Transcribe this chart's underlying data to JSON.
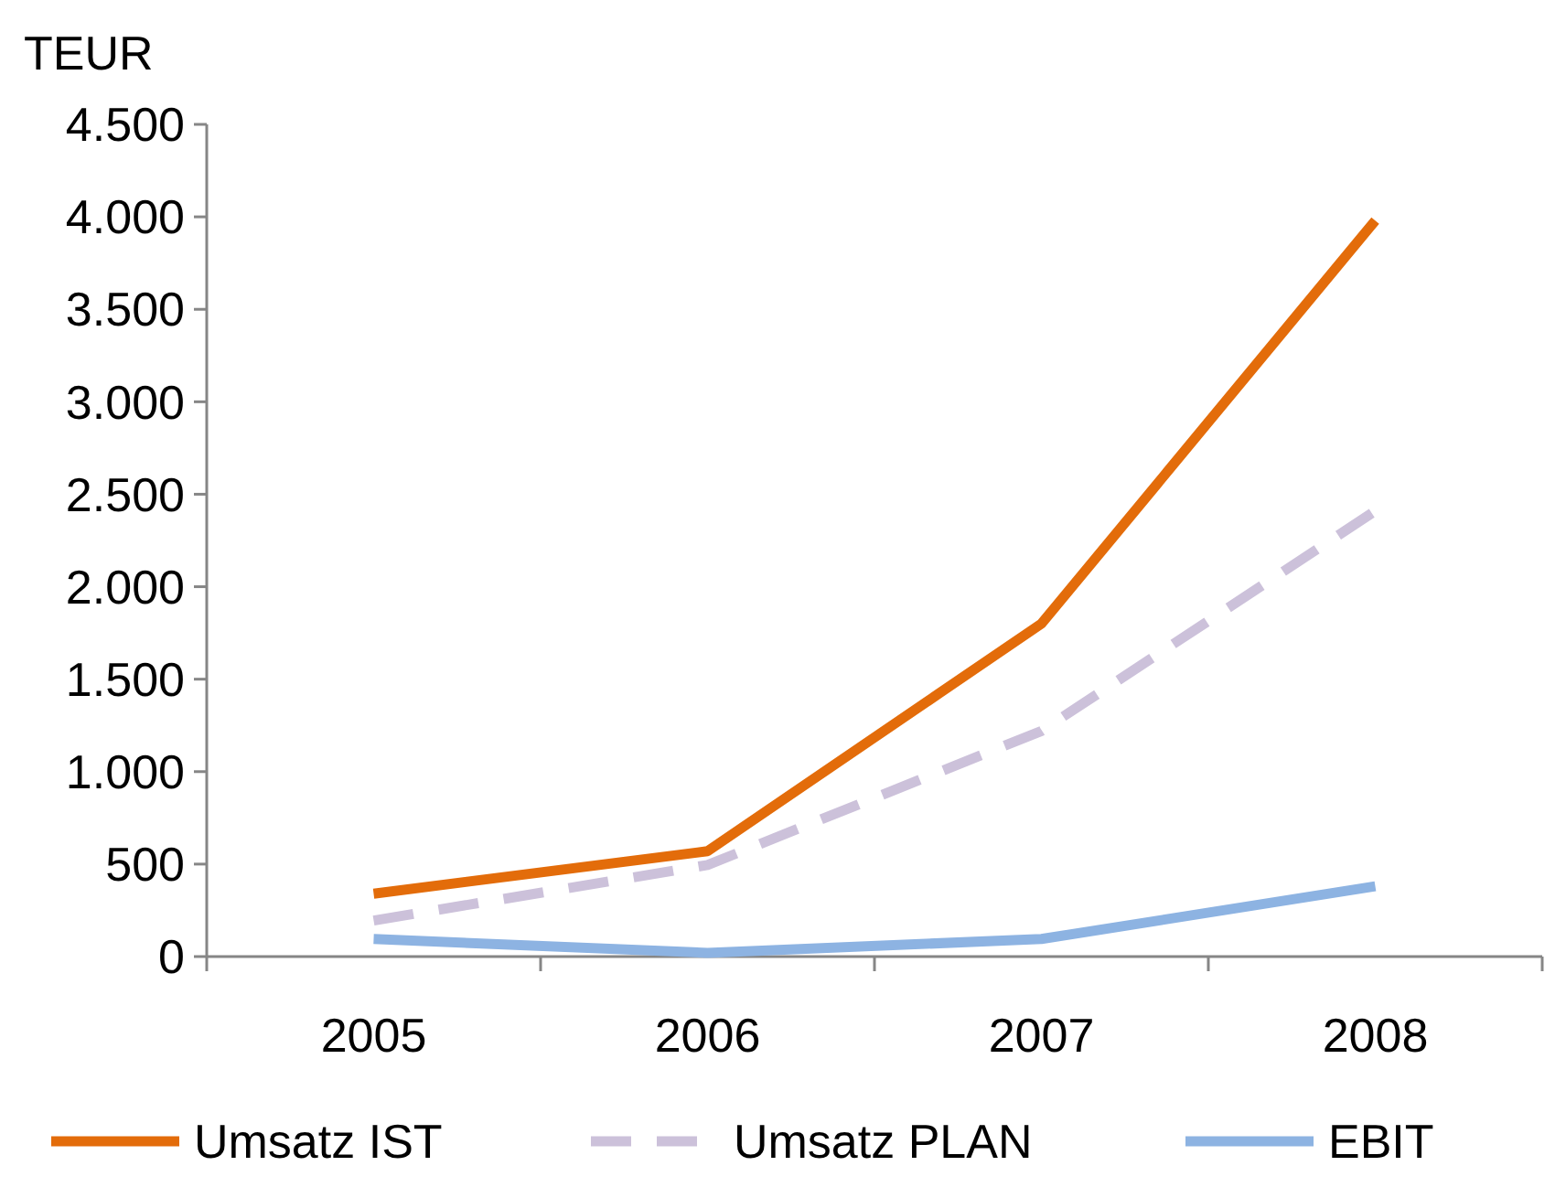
{
  "chart_data": {
    "type": "line",
    "ylabel": "TEUR",
    "categories": [
      "2005",
      "2006",
      "2007",
      "2008"
    ],
    "ylim": [
      0,
      4500
    ],
    "yticks": [
      0,
      500,
      {
        "value": 1000,
        "label": "1.000"
      },
      {
        "value": 1500,
        "label": "1.500"
      },
      {
        "value": 2000,
        "label": "2.000"
      },
      {
        "value": 2500,
        "label": "2.500"
      },
      {
        "value": 3000,
        "label": "3.000"
      },
      {
        "value": 3500,
        "label": "3.500"
      },
      {
        "value": 4000,
        "label": "4.000"
      },
      {
        "value": 4500,
        "label": "4.500"
      }
    ],
    "series": [
      {
        "name": "Umsatz IST",
        "color": "#e36c0a",
        "line_style": "solid",
        "values": [
          340,
          570,
          1800,
          3980
        ]
      },
      {
        "name": "Umsatz PLAN",
        "color": "#ccc1da",
        "line_style": "dashed",
        "values": [
          195,
          495,
          1220,
          2410
        ]
      },
      {
        "name": "EBIT",
        "color": "#8db3e2",
        "line_style": "solid",
        "values": [
          95,
          20,
          95,
          380
        ]
      }
    ],
    "grid": false,
    "legend": "bottom",
    "marker": "none"
  }
}
